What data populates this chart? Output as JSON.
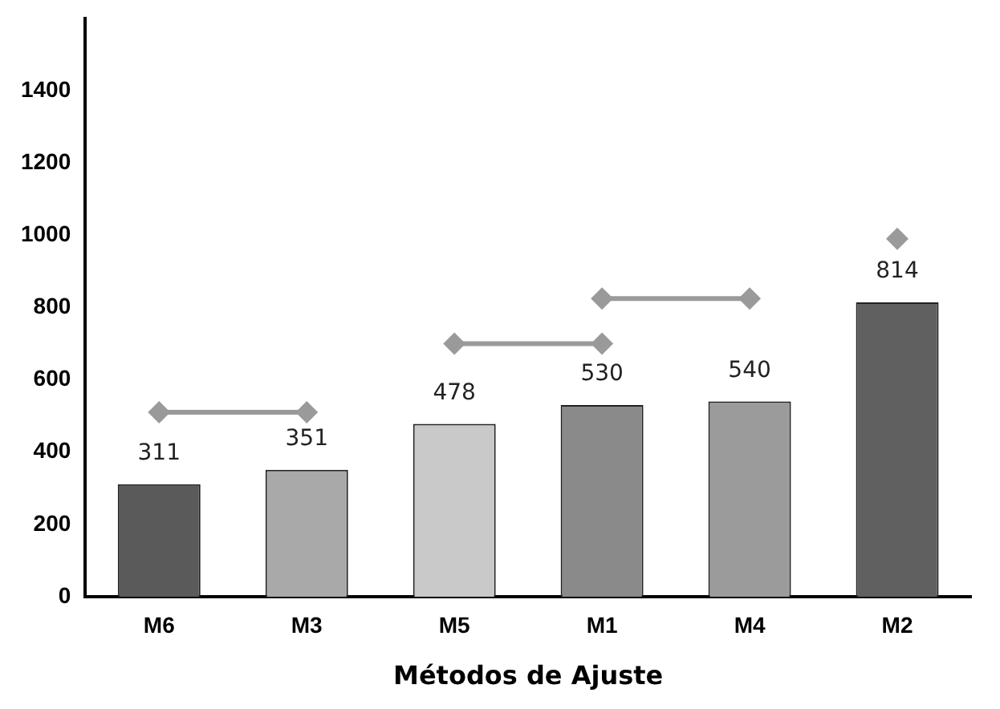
{
  "chart_data": {
    "type": "bar",
    "xlabel": "Métodos de Ajuste",
    "categories": [
      "M6",
      "M3",
      "M5",
      "M1",
      "M4",
      "M2"
    ],
    "values": [
      311,
      351,
      478,
      530,
      540,
      814
    ],
    "value_labels": [
      "311",
      "351",
      "478",
      "530",
      "540",
      "814"
    ],
    "colors": [
      "#5a5a5a",
      "#a9a9a9",
      "#c9c9c9",
      "#8a8a8a",
      "#9b9b9b",
      "#606060"
    ],
    "series": [
      {
        "type": "line",
        "x": [
          "M6",
          "M3"
        ],
        "values": [
          510,
          510
        ],
        "color": "#9a9a9a"
      },
      {
        "type": "line",
        "x": [
          "M5",
          "M1"
        ],
        "values": [
          700,
          700
        ],
        "color": "#9a9a9a"
      },
      {
        "type": "line",
        "x": [
          "M1",
          "M4"
        ],
        "values": [
          825,
          825
        ],
        "color": "#9a9a9a"
      },
      {
        "type": "scatter",
        "x": [
          "M2"
        ],
        "values": [
          990
        ],
        "color": "#9a9a9a"
      }
    ],
    "marker": "diamond",
    "ylim": [
      0,
      1600
    ],
    "yticks": [
      0,
      200,
      400,
      600,
      800,
      1000,
      1200,
      1400
    ],
    "grid": false,
    "legend": false
  }
}
